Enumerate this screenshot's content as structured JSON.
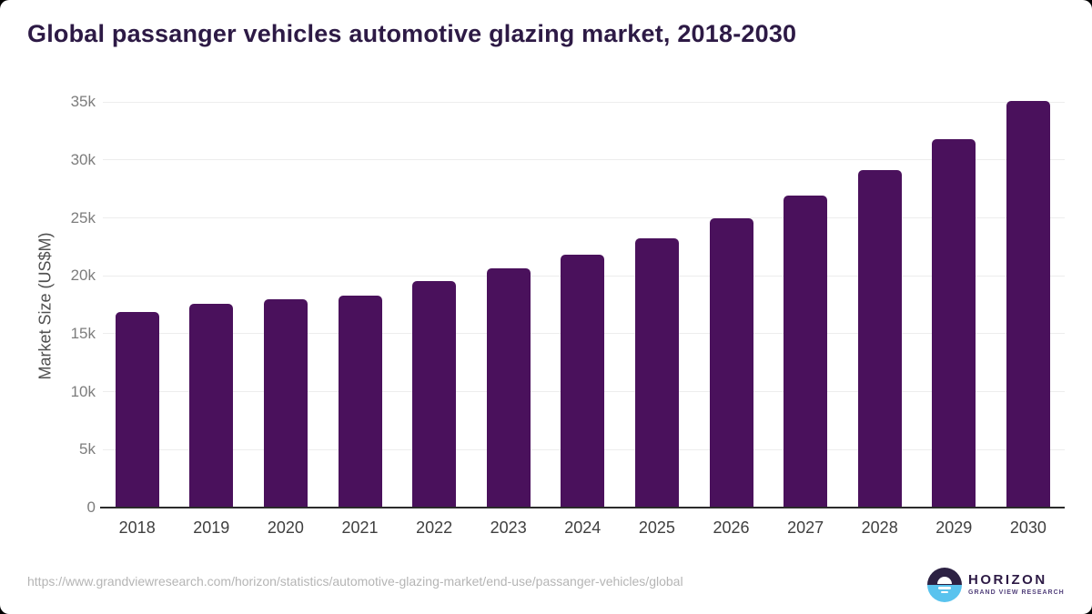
{
  "header": {
    "title": "Global passanger vehicles automotive glazing market, 2018-2030"
  },
  "chart_data": {
    "type": "bar",
    "title": "Global passanger vehicles automotive glazing market, 2018-2030",
    "categories": [
      "2018",
      "2019",
      "2020",
      "2021",
      "2022",
      "2023",
      "2024",
      "2025",
      "2026",
      "2027",
      "2028",
      "2029",
      "2030"
    ],
    "values": [
      16850,
      17550,
      17950,
      18300,
      19550,
      20650,
      21850,
      23250,
      25000,
      26900,
      29150,
      31800,
      35100
    ],
    "xlabel": "",
    "ylabel": "Market Size (US$M)",
    "ylim": [
      0,
      35000
    ],
    "ytick_step": 5000,
    "ytick_labels": [
      "0",
      "5k",
      "10k",
      "15k",
      "20k",
      "25k",
      "30k",
      "35k"
    ],
    "grid": true,
    "legend": false,
    "bar_color": "#4a115c"
  },
  "footer": {
    "source_url": "https://www.grandviewresearch.com/horizon/statistics/automotive-glazing-market/end-use/passanger-vehicles/global",
    "logo": {
      "brand": "HORIZON",
      "sub_brand": "GRAND VIEW RESEARCH"
    }
  },
  "colors": {
    "title": "#2d1a45",
    "bar": "#4a115c",
    "grid_line": "#ededed",
    "axis_line": "#2b2b2b",
    "y_tick_label": "#7d7d7d",
    "y_axis_title": "#4f4f4f",
    "x_tick_label": "#3f3f3f",
    "source_url": "#b5b5b5",
    "logo_dark": "#2c2143",
    "logo_blue": "#59c3ee",
    "background": "#ffffff"
  }
}
